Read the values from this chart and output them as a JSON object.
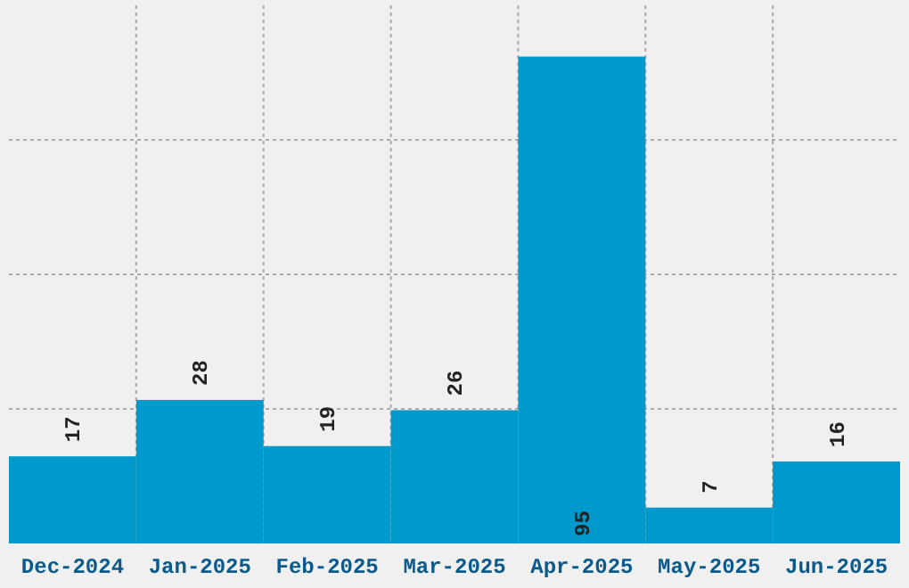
{
  "chart_data": {
    "type": "bar",
    "categories": [
      "Dec-2024",
      "Jan-2025",
      "Feb-2025",
      "Mar-2025",
      "Apr-2025",
      "May-2025",
      "Jun-2025"
    ],
    "values": [
      17,
      28,
      19,
      26,
      95,
      7,
      16
    ],
    "color": "#0099cc",
    "ylim": [
      0,
      105
    ],
    "yticks": [
      {
        "value": 26.25,
        "label": null
      },
      {
        "value": 52.5,
        "label": null
      },
      {
        "value": 78.75,
        "label": null
      }
    ],
    "tick_labels": "x",
    "grid": true,
    "data_labels": true
  }
}
